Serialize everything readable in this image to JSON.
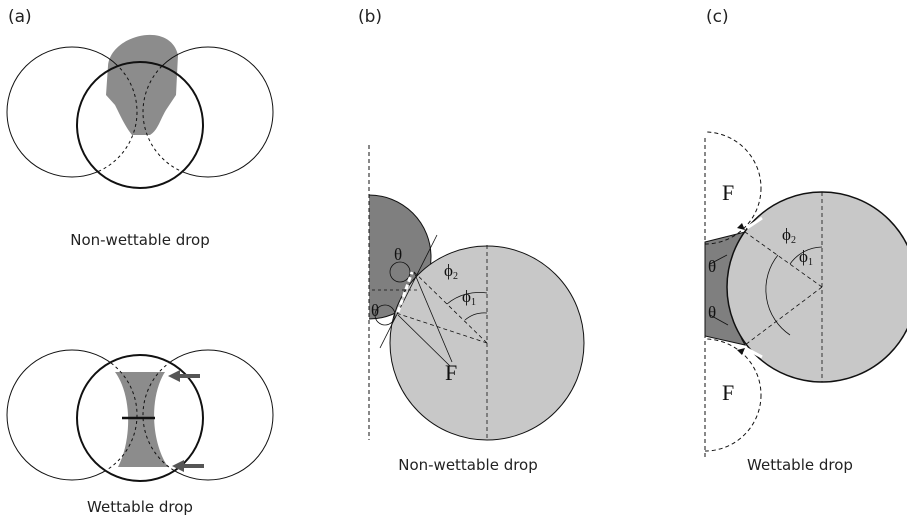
{
  "panels": [
    {
      "label": "(a)",
      "captions": [
        "Non-wettable drop",
        "Wettable drop"
      ]
    },
    {
      "label": "(b)",
      "caption": "Non-wettable drop",
      "theta": [
        "θ",
        "θ"
      ],
      "phi": [
        {
          "base": "ϕ",
          "sub": "2"
        },
        {
          "base": "ϕ",
          "sub": "1"
        }
      ],
      "force": "F"
    },
    {
      "label": "(c)",
      "caption": "Wettable drop",
      "theta": [
        "θ",
        "θ"
      ],
      "phi": [
        {
          "base": "ϕ",
          "sub": "2"
        },
        {
          "base": "ϕ",
          "sub": "1"
        }
      ],
      "force": [
        "F",
        "F"
      ]
    }
  ]
}
